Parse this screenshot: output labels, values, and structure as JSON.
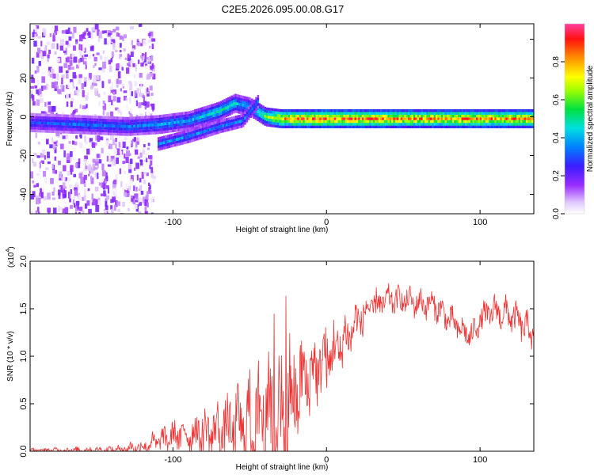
{
  "title": "C2E5.2026.095.00.08.G17",
  "chart_data": [
    {
      "type": "heatmap",
      "xlabel": "Height of straight line (km)",
      "ylabel": "Frequency (Hz)",
      "xlim": [
        -193,
        135
      ],
      "ylim": [
        -50,
        48
      ],
      "xticks": [
        -100,
        0,
        100
      ],
      "yticks": [
        -40,
        -20,
        0,
        20,
        40
      ],
      "colorbar": {
        "label": "Normalized spectral amplitude",
        "range": [
          0.0,
          1.0
        ],
        "ticks": [
          0.0,
          0.2,
          0.4,
          0.6,
          0.8
        ]
      },
      "ridge": {
        "description_x": [
          -193,
          -160,
          -130,
          -110,
          -90,
          -70,
          -60,
          -50,
          -40,
          -30,
          -20,
          0,
          50,
          100,
          135
        ],
        "freq_hz": [
          -3,
          -4,
          -5,
          -4,
          -2,
          3,
          7,
          5,
          0,
          -1,
          -1,
          -1,
          -1,
          -1,
          -1
        ],
        "amplitude": [
          0.3,
          0.35,
          0.35,
          0.4,
          0.4,
          0.5,
          0.45,
          0.4,
          0.6,
          0.8,
          0.9,
          0.9,
          0.85,
          0.85,
          0.85
        ]
      },
      "secondary_ridge": {
        "x": [
          -110,
          -90,
          -70,
          -55,
          -45
        ],
        "freq_hz": [
          -14,
          -10,
          -5,
          -2,
          8
        ]
      }
    },
    {
      "type": "line",
      "xlabel": "Height of straight line (km)",
      "ylabel": "SNR (10 * v/v)",
      "y_scale_label": "(x10",
      "y_scale_exponent": "4",
      "xlim": [
        -193,
        135
      ],
      "ylim": [
        0.0,
        2.0
      ],
      "xticks": [
        -100,
        0,
        100
      ],
      "yticks": [
        "0.0",
        "0.5",
        "1.0",
        "1.5",
        "2.0"
      ],
      "color": "#ee3333",
      "series": [
        {
          "name": "SNR",
          "x": [
            -193,
            -140,
            -120,
            -100,
            -80,
            -60,
            -40,
            -25,
            -10,
            10,
            20,
            30,
            40,
            50,
            60,
            70,
            80,
            90,
            95,
            100,
            110,
            120,
            135
          ],
          "envelope": [
            0.02,
            0.03,
            0.08,
            0.22,
            0.3,
            0.4,
            0.6,
            0.75,
            1.0,
            1.25,
            1.45,
            1.6,
            1.65,
            1.65,
            1.62,
            1.6,
            1.45,
            1.3,
            1.28,
            1.45,
            1.55,
            1.5,
            1.3
          ],
          "noise": [
            0.02,
            0.03,
            0.07,
            0.12,
            0.2,
            0.3,
            0.55,
            0.5,
            0.35,
            0.25,
            0.18,
            0.14,
            0.12,
            0.12,
            0.12,
            0.12,
            0.12,
            0.12,
            0.12,
            0.12,
            0.14,
            0.14,
            0.14
          ]
        }
      ]
    }
  ]
}
